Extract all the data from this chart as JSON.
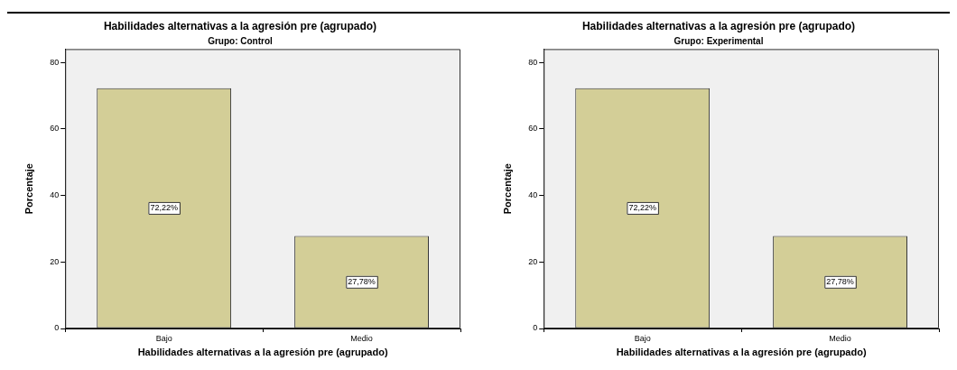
{
  "chart_data": [
    {
      "type": "bar",
      "title": "Habilidades alternativas a la agresión pre (agrupado)",
      "subtitle": "Grupo: Control",
      "xlabel": "Habilidades alternativas a la agresión pre (agrupado)",
      "ylabel": "Porcentaje",
      "categories": [
        "Bajo",
        "Medio"
      ],
      "values": [
        72.22,
        27.78
      ],
      "value_labels": [
        "72,22%",
        "27,78%"
      ],
      "color": "#d3ce97",
      "ylim": [
        0,
        84
      ],
      "yticks": [
        0,
        20,
        40,
        60,
        80
      ],
      "grid": false,
      "legend": false
    },
    {
      "type": "bar",
      "title": "Habilidades alternativas a la agresión pre (agrupado)",
      "subtitle": "Grupo: Experimental",
      "xlabel": "Habilidades alternativas a la agresión pre (agrupado)",
      "ylabel": "Porcentaje",
      "categories": [
        "Bajo",
        "Medio"
      ],
      "values": [
        72.22,
        27.78
      ],
      "value_labels": [
        "72,22%",
        "27,78%"
      ],
      "color": "#d3ce97",
      "ylim": [
        0,
        84
      ],
      "yticks": [
        0,
        20,
        40,
        60,
        80
      ],
      "grid": false,
      "legend": false
    }
  ]
}
